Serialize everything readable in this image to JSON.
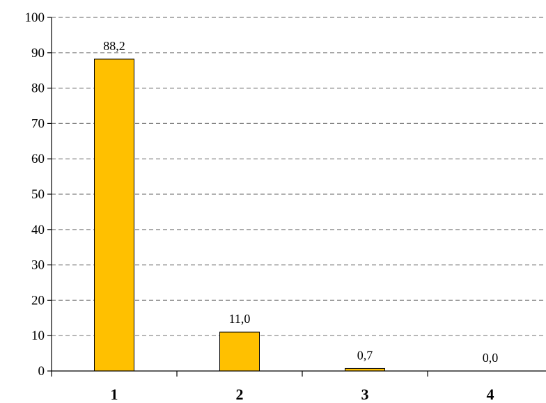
{
  "chart_data": {
    "type": "bar",
    "categories": [
      "1",
      "2",
      "3",
      "4"
    ],
    "values": [
      88.2,
      11.0,
      0.7,
      0.0
    ],
    "data_labels": [
      "88,2",
      "11,0",
      "0,7",
      "0,0"
    ],
    "y_ticks": [
      "0",
      "10",
      "20",
      "30",
      "40",
      "50",
      "60",
      "70",
      "80",
      "90",
      "100"
    ],
    "ylim": [
      0,
      100
    ],
    "grid": true,
    "bar_color": "#FFC000",
    "bar_border_color": "#000000",
    "grid_color": "#808080",
    "title": "",
    "xlabel": "",
    "ylabel": ""
  }
}
